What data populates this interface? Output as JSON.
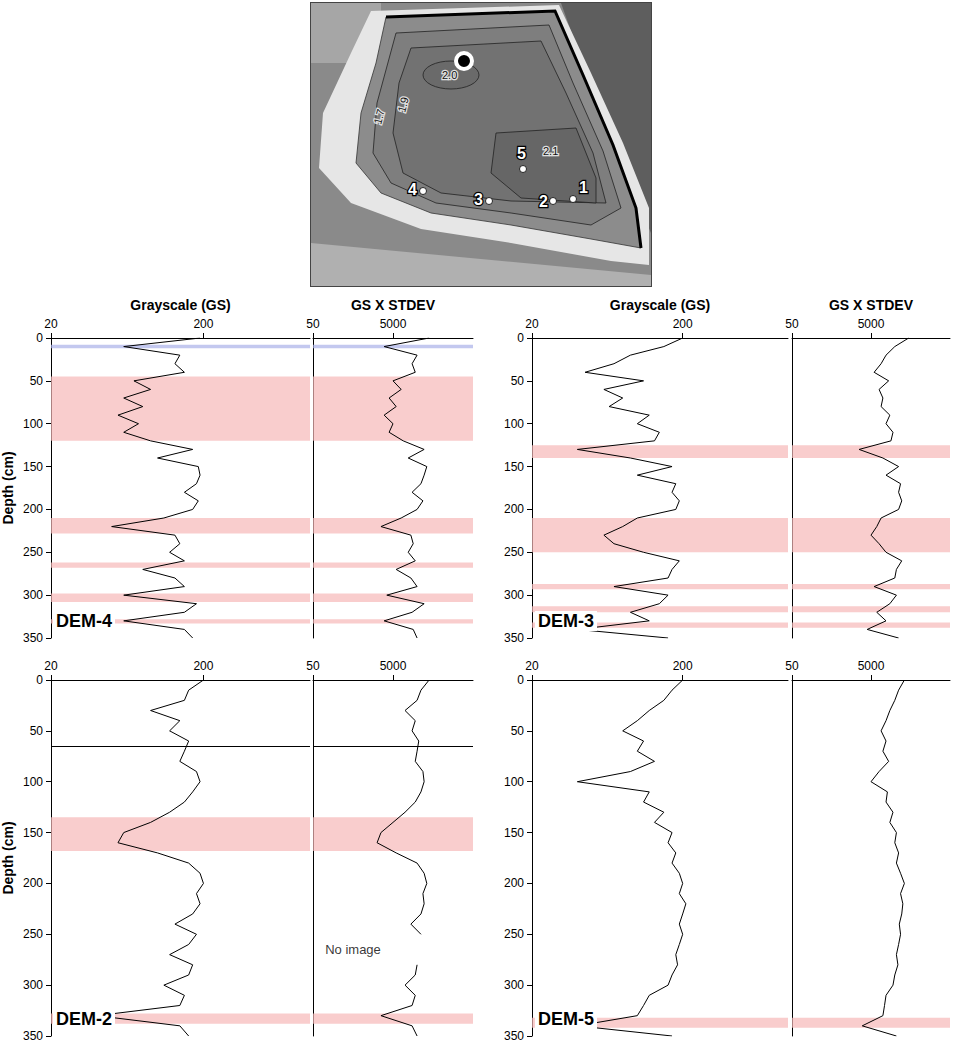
{
  "map": {
    "contour_labels": [
      "1.7",
      "1.9",
      "2.0",
      "2.1"
    ],
    "sites": [
      "1",
      "2",
      "3",
      "4",
      "5"
    ]
  },
  "chart_data": [
    {
      "type": "line",
      "title": "DEM-4",
      "ylabel": "Depth (cm)",
      "ylim": [
        0,
        350
      ],
      "yticks": [
        0,
        50,
        100,
        150,
        200,
        250,
        300,
        350
      ],
      "depth": [
        0,
        10,
        20,
        30,
        40,
        50,
        60,
        70,
        80,
        90,
        100,
        110,
        120,
        130,
        140,
        150,
        160,
        170,
        180,
        190,
        200,
        210,
        220,
        230,
        240,
        250,
        260,
        270,
        280,
        290,
        300,
        310,
        320,
        330,
        340,
        350
      ],
      "bands": [
        {
          "from": 8,
          "to": 12,
          "color": "#aab0e8"
        },
        {
          "from": 45,
          "to": 120,
          "color": "#f6b8b8"
        },
        {
          "from": 210,
          "to": 228,
          "color": "#f6b8b8"
        },
        {
          "from": 262,
          "to": 268,
          "color": "#f6b8b8"
        },
        {
          "from": 298,
          "to": 308,
          "color": "#f6b8b8"
        },
        {
          "from": 328,
          "to": 333,
          "color": "#f6b8b8"
        }
      ],
      "rules": [],
      "panels": [
        {
          "xlabel": "Grayscale (GS)",
          "log": "x",
          "xlim": [
            20,
            1000
          ],
          "xticks": [
            20,
            200
          ],
          "color": "#000000",
          "values": [
            190,
            60,
            140,
            130,
            150,
            70,
            90,
            60,
            80,
            55,
            75,
            60,
            90,
            170,
            100,
            185,
            190,
            180,
            150,
            185,
            170,
            110,
            50,
            130,
            140,
            120,
            150,
            80,
            130,
            150,
            60,
            180,
            150,
            60,
            150,
            170
          ]
        },
        {
          "xlabel": "GS X STDEV",
          "log": "x",
          "xlim": [
            50,
            500000
          ],
          "xticks": [
            50,
            5000
          ],
          "color": "#000000",
          "values": [
            40000,
            3000,
            20000,
            15000,
            18000,
            5000,
            8000,
            4000,
            6000,
            3000,
            5000,
            4000,
            9000,
            30000,
            12000,
            35000,
            30000,
            25000,
            15000,
            28000,
            20000,
            8000,
            2500,
            14000,
            16000,
            12000,
            18000,
            6000,
            14000,
            20000,
            3500,
            30000,
            15000,
            3000,
            16000,
            20000
          ]
        }
      ]
    },
    {
      "type": "line",
      "title": "DEM-3",
      "ylim": [
        0,
        350
      ],
      "yticks": [
        0,
        50,
        100,
        150,
        200,
        250,
        300,
        350
      ],
      "depth": [
        0,
        10,
        20,
        30,
        40,
        50,
        60,
        70,
        80,
        90,
        100,
        110,
        120,
        130,
        140,
        150,
        160,
        170,
        180,
        190,
        200,
        210,
        220,
        230,
        240,
        250,
        260,
        270,
        280,
        290,
        300,
        310,
        320,
        330,
        340,
        350
      ],
      "bands": [
        {
          "from": 125,
          "to": 140,
          "color": "#f6b8b8"
        },
        {
          "from": 210,
          "to": 250,
          "color": "#f6b8b8"
        },
        {
          "from": 287,
          "to": 293,
          "color": "#f6b8b8"
        },
        {
          "from": 313,
          "to": 320,
          "color": "#f6b8b8"
        },
        {
          "from": 332,
          "to": 338,
          "color": "#f6b8b8"
        }
      ],
      "rules": [],
      "panels": [
        {
          "xlabel": "Grayscale (GS)",
          "log": "x",
          "xlim": [
            20,
            1000
          ],
          "xticks": [
            20,
            200
          ],
          "color": "#000000",
          "values": [
            200,
            150,
            90,
            70,
            45,
            110,
            60,
            80,
            65,
            120,
            100,
            140,
            130,
            40,
            90,
            170,
            100,
            180,
            170,
            190,
            180,
            100,
            80,
            60,
            70,
            110,
            190,
            170,
            160,
            70,
            160,
            140,
            90,
            120,
            40,
            160
          ]
        },
        {
          "xlabel": "GS X STDEV",
          "log": "x",
          "xlim": [
            50,
            500000
          ],
          "xticks": [
            50,
            5000
          ],
          "color": "#000000",
          "values": [
            45000,
            20000,
            12000,
            9000,
            6000,
            14000,
            8000,
            10000,
            9000,
            15000,
            12000,
            18000,
            16000,
            2500,
            10000,
            25000,
            12000,
            28000,
            25000,
            30000,
            25000,
            9000,
            7000,
            5000,
            8000,
            12000,
            30000,
            22000,
            20000,
            6000,
            22000,
            15000,
            7000,
            12000,
            4000,
            25000
          ]
        }
      ]
    },
    {
      "type": "line",
      "title": "DEM-2",
      "ylabel": "Depth (cm)",
      "ylim": [
        0,
        350
      ],
      "yticks": [
        0,
        50,
        100,
        150,
        200,
        250,
        300,
        350
      ],
      "depth": [
        0,
        10,
        20,
        30,
        40,
        50,
        60,
        70,
        80,
        90,
        100,
        110,
        120,
        130,
        140,
        150,
        160,
        170,
        180,
        190,
        200,
        210,
        220,
        230,
        240,
        250,
        260,
        270,
        280,
        290,
        300,
        310,
        320,
        330,
        340,
        350
      ],
      "bands": [
        {
          "from": 135,
          "to": 168,
          "color": "#f6b8b8"
        },
        {
          "from": 328,
          "to": 338,
          "color": "#f6b8b8"
        }
      ],
      "rules": [
        {
          "depth": 65,
          "color": "#000000"
        }
      ],
      "panels": [
        {
          "log": "x",
          "xlim": [
            20,
            1000
          ],
          "xticks": [
            20,
            200
          ],
          "color": "#000000",
          "values": [
            200,
            160,
            150,
            90,
            140,
            120,
            160,
            150,
            140,
            180,
            190,
            170,
            150,
            120,
            90,
            60,
            55,
            100,
            160,
            190,
            200,
            180,
            190,
            170,
            130,
            180,
            160,
            120,
            170,
            160,
            110,
            150,
            140,
            40,
            140,
            160
          ]
        },
        {
          "log": "x",
          "xlim": [
            50,
            500000
          ],
          "xticks": [
            50,
            5000
          ],
          "color": "#000000",
          "values": [
            40000,
            25000,
            20000,
            10000,
            18000,
            15000,
            22000,
            20000,
            18000,
            28000,
            30000,
            25000,
            18000,
            10000,
            5000,
            2500,
            2000,
            6000,
            20000,
            30000,
            35000,
            28000,
            30000,
            25000,
            14000,
            25000,
            null,
            null,
            20000,
            18000,
            10000,
            18000,
            15000,
            2500,
            15000,
            20000
          ],
          "annotations": [
            {
              "text": "No image",
              "x": 500,
              "y": 265
            }
          ]
        }
      ]
    },
    {
      "type": "line",
      "title": "DEM-5",
      "ylim": [
        0,
        350
      ],
      "yticks": [
        0,
        50,
        100,
        150,
        200,
        250,
        300,
        350
      ],
      "depth": [
        0,
        10,
        20,
        30,
        40,
        50,
        60,
        70,
        80,
        90,
        100,
        110,
        120,
        130,
        140,
        150,
        160,
        170,
        180,
        190,
        200,
        210,
        220,
        230,
        240,
        250,
        260,
        270,
        280,
        290,
        300,
        310,
        320,
        330,
        340,
        350
      ],
      "bands": [
        {
          "from": 332,
          "to": 342,
          "color": "#f6b8b8"
        }
      ],
      "rules": [],
      "panels": [
        {
          "log": "x",
          "xlim": [
            20,
            1000
          ],
          "xticks": [
            20,
            200
          ],
          "color": "#000000",
          "values": [
            200,
            170,
            150,
            120,
            100,
            80,
            110,
            100,
            130,
            90,
            40,
            120,
            110,
            150,
            130,
            170,
            160,
            180,
            170,
            190,
            200,
            190,
            210,
            200,
            190,
            200,
            190,
            180,
            185,
            170,
            160,
            120,
            110,
            100,
            40,
            170
          ]
        },
        {
          "log": "x",
          "xlim": [
            50,
            500000
          ],
          "xticks": [
            50,
            5000
          ],
          "color": "#000000",
          "values": [
            35000,
            25000,
            20000,
            15000,
            12000,
            9000,
            12000,
            10000,
            14000,
            8000,
            5000,
            13000,
            12000,
            18000,
            15000,
            22000,
            20000,
            25000,
            22000,
            28000,
            35000,
            28000,
            32000,
            30000,
            26000,
            28000,
            25000,
            22000,
            24000,
            20000,
            18000,
            12000,
            11000,
            10000,
            3000,
            22000
          ]
        }
      ]
    }
  ]
}
